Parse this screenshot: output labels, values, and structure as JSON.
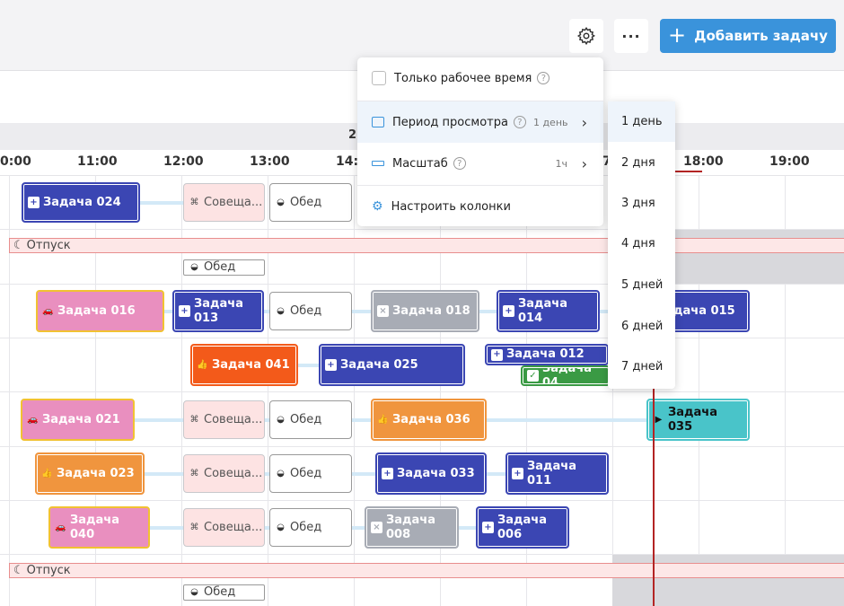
{
  "toolbar": {
    "settings_icon": "gear-icon",
    "more_icon": "ellipsis-icon",
    "more_label": "···",
    "add_label": "Добавить задачу"
  },
  "timeline": {
    "date_fragment": "2",
    "ticks": [
      "0:00",
      "11:00",
      "12:00",
      "13:00",
      "14:0",
      "7",
      "18:00",
      "19:00"
    ]
  },
  "menu": {
    "working_time": "Только рабочее время",
    "period": "Период просмотра",
    "period_value": "1 день",
    "scale": "Масштаб",
    "scale_value": "1ч",
    "columns": "Настроить колонки"
  },
  "period_options": [
    "1 день",
    "2 дня",
    "3 дня",
    "4 дня",
    "5 дней",
    "6 дней",
    "7 дней"
  ],
  "vacation_label": "Отпуск",
  "tasks": {
    "t024": "Задача 024",
    "meet": "Совеща...",
    "lunch": "Обед",
    "t016": "Задача 016",
    "t013": "Задача 013",
    "t018": "Задача 018",
    "t014": "Задача 014",
    "t015": "дача 015",
    "t041": "Задача 041",
    "t025": "Задача 025",
    "t012": "Задача 012",
    "t04x": "Задача 04",
    "t021": "Задача 021",
    "t036": "Задача 036",
    "t035": "Задача 035",
    "t023": "Задача 023",
    "t033": "Задача 033",
    "t011": "Задача 011",
    "t040": "Задача 040",
    "t008": "Задача 008",
    "t006": "Задача 006"
  },
  "colors": {
    "accent": "#3a93db",
    "task_blue": "#3b46b3",
    "task_pink": "#e98fbf",
    "task_orange": "#f0953e",
    "task_red": "#f35a1a",
    "task_grey": "#a8acb5",
    "task_green": "#3a9a44",
    "task_teal": "#49c4c9",
    "now_line": "#b32424"
  }
}
